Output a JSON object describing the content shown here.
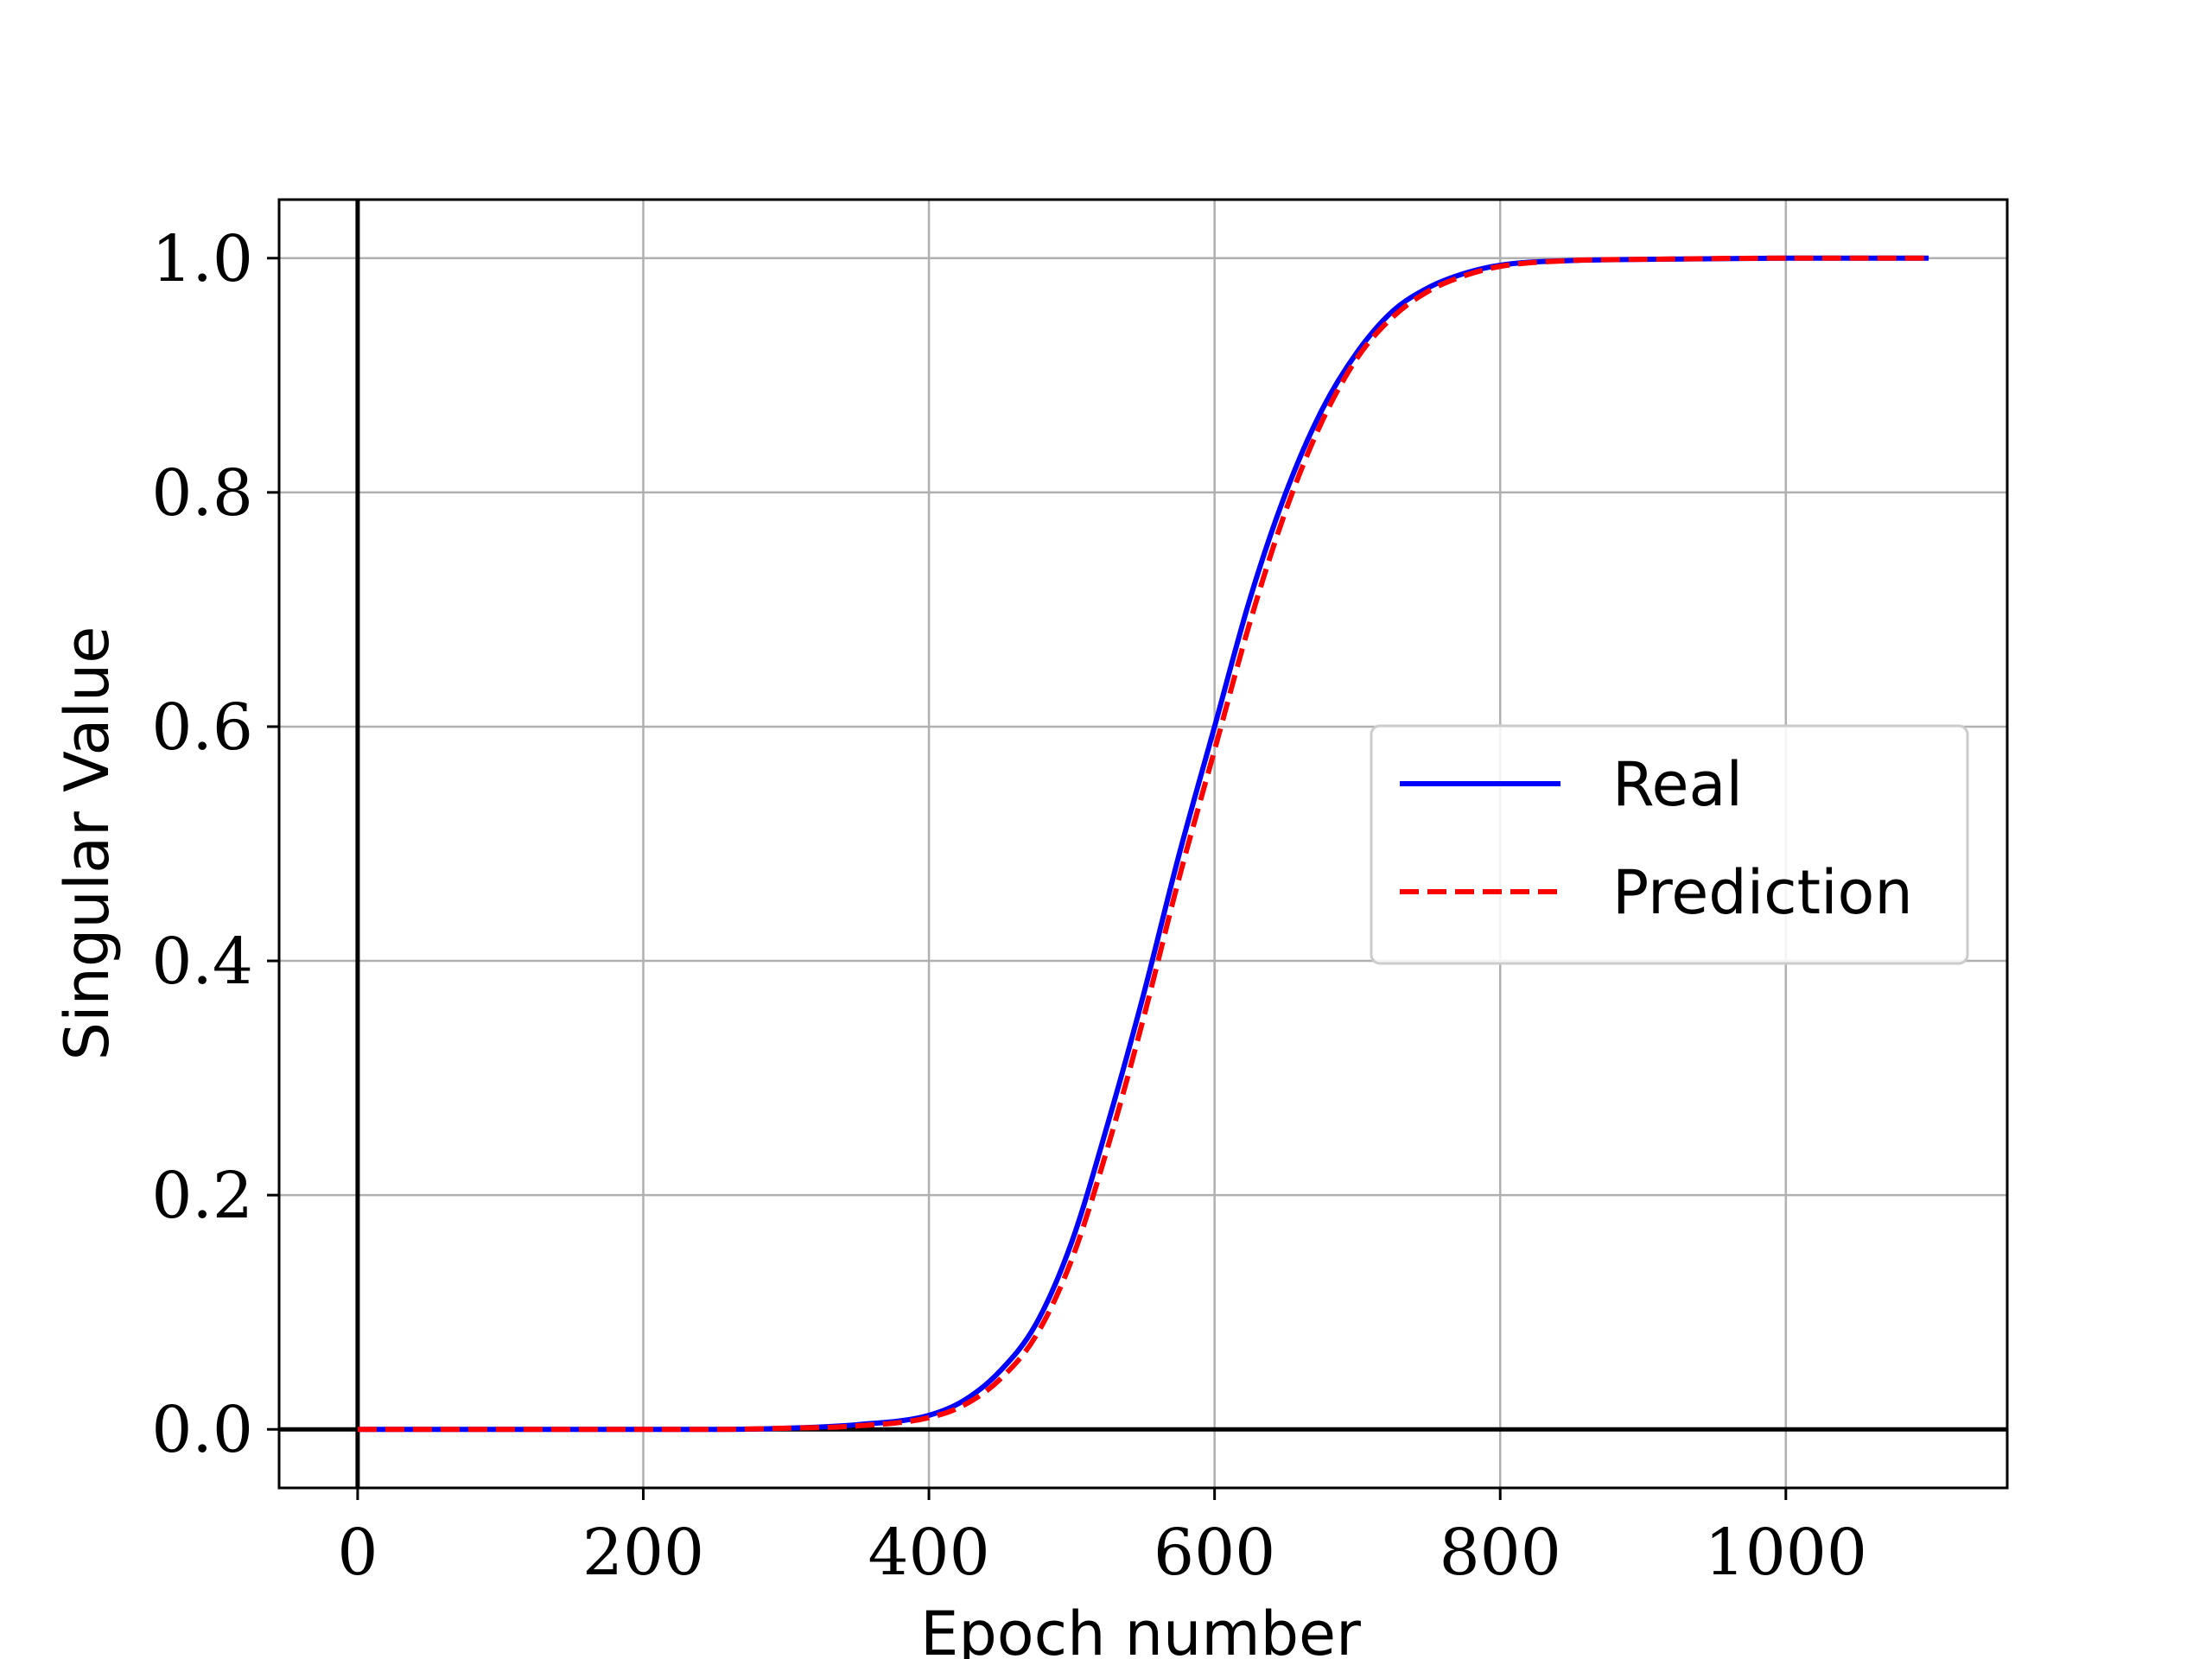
{
  "chart_data": {
    "type": "line",
    "xlabel": "Epoch number",
    "ylabel": "Singular Value",
    "xlim": [
      -55,
      1155
    ],
    "ylim": [
      -0.05,
      1.05
    ],
    "xticks": [
      0,
      200,
      400,
      600,
      800,
      1000
    ],
    "xtick_labels": [
      "0",
      "200",
      "400",
      "600",
      "800",
      "1000"
    ],
    "yticks": [
      0.0,
      0.2,
      0.4,
      0.6,
      0.8,
      1.0
    ],
    "ytick_labels": [
      "0.0",
      "0.2",
      "0.4",
      "0.6",
      "0.8",
      "1.0"
    ],
    "grid": true,
    "reference_lines": {
      "x": 0,
      "y": 0
    },
    "legend": {
      "placement": "center-right"
    },
    "x": [
      0,
      100,
      200,
      250,
      300,
      350,
      400,
      425,
      450,
      475,
      500,
      525,
      550,
      575,
      600,
      625,
      650,
      675,
      700,
      725,
      750,
      775,
      800,
      850,
      900,
      1000,
      1100
    ],
    "series": [
      {
        "name": "Real",
        "color": "#0000ff",
        "style": "solid",
        "values": [
          0.0,
          0.0,
          0.0,
          0.0,
          0.001,
          0.004,
          0.012,
          0.025,
          0.05,
          0.09,
          0.16,
          0.26,
          0.37,
          0.49,
          0.6,
          0.71,
          0.8,
          0.87,
          0.92,
          0.955,
          0.975,
          0.987,
          0.994,
          0.998,
          0.999,
          1.0,
          1.0
        ]
      },
      {
        "name": "Prediction",
        "color": "#ff0000",
        "style": "dashed",
        "values": [
          0.0,
          0.0,
          0.0,
          0.0,
          0.001,
          0.003,
          0.01,
          0.021,
          0.043,
          0.08,
          0.145,
          0.24,
          0.35,
          0.47,
          0.58,
          0.69,
          0.785,
          0.86,
          0.915,
          0.95,
          0.972,
          0.985,
          0.993,
          0.998,
          0.999,
          1.0,
          1.0
        ]
      }
    ]
  }
}
